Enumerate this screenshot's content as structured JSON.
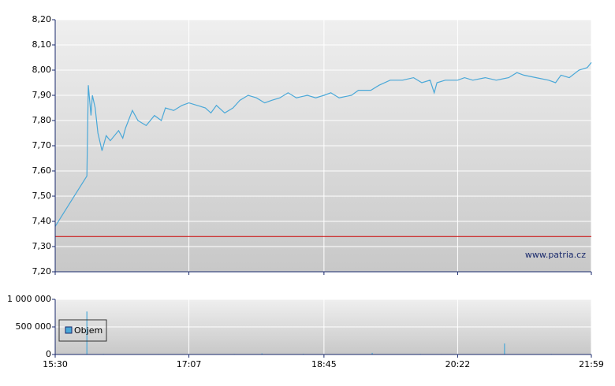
{
  "chart_data": [
    {
      "type": "line",
      "color": "#4aa8d8",
      "watermark": "www.patria.cz",
      "reference_line": 7.34,
      "reference_color": "#cc0000",
      "x": [
        "15:30",
        "15:53",
        "15:54",
        "15:56",
        "15:57",
        "15:59",
        "16:01",
        "16:04",
        "16:07",
        "16:10",
        "16:16",
        "16:19",
        "16:21",
        "16:26",
        "16:30",
        "16:36",
        "16:42",
        "16:47",
        "16:50",
        "16:56",
        "17:02",
        "17:07",
        "17:13",
        "17:19",
        "17:23",
        "17:27",
        "17:33",
        "17:39",
        "17:44",
        "17:50",
        "17:56",
        "18:02",
        "18:07",
        "18:13",
        "18:19",
        "18:25",
        "18:33",
        "18:39",
        "18:45",
        "18:50",
        "18:56",
        "19:05",
        "19:10",
        "19:19",
        "19:25",
        "19:33",
        "19:42",
        "19:50",
        "19:56",
        "20:02",
        "20:05",
        "20:07",
        "20:13",
        "20:22",
        "20:27",
        "20:33",
        "20:42",
        "20:50",
        "20:59",
        "21:05",
        "21:10",
        "21:19",
        "21:28",
        "21:33",
        "21:37",
        "21:43",
        "21:50",
        "21:56",
        "21:59"
      ],
      "values": [
        7.38,
        7.58,
        7.94,
        7.82,
        7.9,
        7.85,
        7.75,
        7.68,
        7.74,
        7.72,
        7.76,
        7.73,
        7.77,
        7.84,
        7.8,
        7.78,
        7.82,
        7.8,
        7.85,
        7.84,
        7.86,
        7.87,
        7.86,
        7.85,
        7.83,
        7.86,
        7.83,
        7.85,
        7.88,
        7.9,
        7.89,
        7.87,
        7.88,
        7.89,
        7.91,
        7.89,
        7.9,
        7.89,
        7.9,
        7.91,
        7.89,
        7.9,
        7.92,
        7.92,
        7.94,
        7.96,
        7.96,
        7.97,
        7.95,
        7.96,
        7.91,
        7.95,
        7.96,
        7.96,
        7.97,
        7.96,
        7.97,
        7.96,
        7.97,
        7.99,
        7.98,
        7.97,
        7.96,
        7.95,
        7.98,
        7.97,
        8.0,
        8.01,
        8.03
      ],
      "xlim": [
        "15:30",
        "21:59"
      ],
      "ylim": [
        7.2,
        8.2
      ],
      "yticks": [
        {
          "value": 7.2,
          "label": "7,20"
        },
        {
          "value": 7.3,
          "label": "7,30"
        },
        {
          "value": 7.4,
          "label": "7,40"
        },
        {
          "value": 7.5,
          "label": "7,50"
        },
        {
          "value": 7.6,
          "label": "7,60"
        },
        {
          "value": 7.7,
          "label": "7,70"
        },
        {
          "value": 7.8,
          "label": "7,80"
        },
        {
          "value": 7.9,
          "label": "7,90"
        },
        {
          "value": 8.0,
          "label": "8,00"
        },
        {
          "value": 8.1,
          "label": "8,10"
        },
        {
          "value": 8.2,
          "label": "8,20"
        }
      ],
      "grid": true
    },
    {
      "type": "bar",
      "name": "Objem",
      "color": "#4aa8d8",
      "x": [
        "15:53",
        "16:05",
        "16:45",
        "17:10",
        "17:40",
        "18:00",
        "18:30",
        "19:20",
        "19:55",
        "20:10",
        "20:56",
        "21:30"
      ],
      "values": [
        780000,
        10000,
        8000,
        6000,
        9000,
        20000,
        12000,
        30000,
        10000,
        8000,
        200000,
        10000
      ],
      "xlim": [
        "15:30",
        "21:59"
      ],
      "xticks": [
        "15:30",
        "17:07",
        "18:45",
        "20:22",
        "21:59"
      ],
      "ylim": [
        0,
        1000000
      ],
      "yticks": [
        0,
        {
          "value": 500000,
          "label": "500 000"
        },
        {
          "value": 1000000,
          "label": "1 000 000"
        }
      ],
      "grid": true
    }
  ]
}
